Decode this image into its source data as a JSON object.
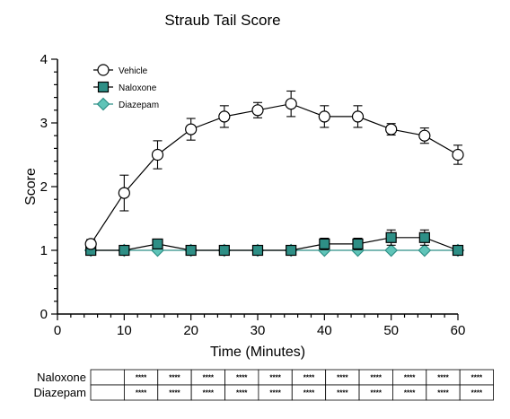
{
  "chart_data": {
    "type": "line",
    "title": "Straub Tail Score",
    "xlabel": "Time (Minutes)",
    "ylabel": "Score",
    "xlim": [
      0,
      60
    ],
    "ylim": [
      0,
      4
    ],
    "x_ticks": [
      0,
      10,
      20,
      30,
      40,
      50,
      60
    ],
    "y_ticks": [
      0,
      1,
      2,
      3,
      4
    ],
    "x_tick_labels": [
      "0",
      "10",
      "20",
      "30",
      "40",
      "50",
      "60"
    ],
    "y_tick_labels": [
      "0",
      "1",
      "2",
      "3",
      "4"
    ],
    "x": [
      5,
      10,
      15,
      20,
      25,
      30,
      35,
      40,
      45,
      50,
      55,
      60
    ],
    "legend_position": "top-left",
    "series": [
      {
        "name": "Vehicle",
        "marker": "circle",
        "fill": "#ffffff",
        "color": "#000000",
        "values": [
          1.1,
          1.9,
          2.5,
          2.9,
          3.1,
          3.2,
          3.3,
          3.1,
          3.1,
          2.9,
          2.8,
          2.5
        ],
        "error": [
          0.07,
          0.28,
          0.22,
          0.17,
          0.17,
          0.12,
          0.2,
          0.17,
          0.17,
          0.09,
          0.12,
          0.15
        ]
      },
      {
        "name": "Naloxone",
        "marker": "square",
        "fill": "#2e8f86",
        "color": "#000000",
        "values": [
          1.0,
          1.0,
          1.1,
          1.0,
          1.0,
          1.0,
          1.0,
          1.1,
          1.1,
          1.2,
          1.2,
          1.0
        ],
        "error": [
          0,
          0,
          0.07,
          0,
          0,
          0,
          0,
          0.09,
          0.09,
          0.12,
          0.12,
          0
        ]
      },
      {
        "name": "Diazepam",
        "marker": "diamond",
        "fill": "#5fc4b8",
        "color": "#2e8f86",
        "values": [
          1.0,
          1.0,
          1.0,
          1.0,
          1.0,
          1.0,
          1.0,
          1.0,
          1.0,
          1.0,
          1.0,
          1.0
        ],
        "error": [
          0,
          0,
          0,
          0,
          0,
          0,
          0,
          0,
          0,
          0,
          0,
          0
        ]
      }
    ],
    "significance_table": {
      "rows": [
        {
          "label": "Naloxone",
          "cells": [
            "",
            "****",
            "****",
            "****",
            "****",
            "****",
            "****",
            "****",
            "****",
            "****",
            "****",
            "****"
          ]
        },
        {
          "label": "Diazepam",
          "cells": [
            "",
            "****",
            "****",
            "****",
            "****",
            "****",
            "****",
            "****",
            "****",
            "****",
            "****",
            "****"
          ]
        }
      ]
    }
  }
}
